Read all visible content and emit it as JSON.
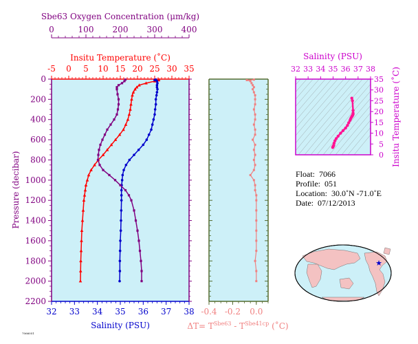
{
  "colors": {
    "oxygen": "#800080",
    "temperature": "#ff0000",
    "salinity": "#0000cc",
    "delta_t": "#f08080",
    "ts_curve": "#ff1493",
    "ts_axis": "#cc00cc",
    "plot_bg": "#cdf0f8",
    "pressure_axis": "#800080",
    "delta_axis": "#556b2f"
  },
  "info": {
    "float_label": "Float:",
    "float_value": "7066",
    "profile_label": "Profile:",
    "profile_value": "051",
    "location_label": "Location:",
    "location_value": "30.0˚N  -71.0˚E",
    "date_label": "Date:",
    "date_value": "07/12/2013"
  },
  "footer_code": "7066051",
  "chart_data": [
    {
      "type": "line",
      "title": "",
      "ylabel": "Pressure (decibar)",
      "ylim": [
        2200,
        0
      ],
      "yticks": [
        "0",
        "200",
        "400",
        "600",
        "800",
        "1000",
        "1200",
        "1400",
        "1600",
        "1800",
        "2000",
        "2200"
      ],
      "axes": {
        "oxygen": {
          "label": "Sbe63 Oxygen Concentration (μm/kg)",
          "range": [
            0,
            400
          ],
          "ticks": [
            "0",
            "100",
            "200",
            "300",
            "400"
          ]
        },
        "temperature": {
          "label": "Insitu Temperature (˚C)",
          "range": [
            -5,
            35
          ],
          "ticks": [
            "-5",
            "0",
            "5",
            "10",
            "15",
            "20",
            "25",
            "30",
            "35"
          ]
        },
        "salinity": {
          "label": "Salinity (PSU)",
          "range": [
            32,
            38
          ],
          "ticks": [
            "32",
            "33",
            "34",
            "35",
            "36",
            "37",
            "38"
          ]
        }
      },
      "series": [
        {
          "key": "temperature",
          "pressure": [
            5,
            10,
            20,
            40,
            60,
            80,
            100,
            130,
            160,
            200,
            250,
            300,
            350,
            400,
            450,
            500,
            550,
            600,
            650,
            700,
            750,
            800,
            850,
            900,
            950,
            1000,
            1050,
            1100,
            1150,
            1200,
            1300,
            1400,
            1500,
            1600,
            1700,
            1800,
            1900,
            2000
          ],
          "values": [
            26.2,
            26.1,
            25.0,
            22.5,
            20.5,
            19.8,
            19.3,
            18.8,
            18.5,
            18.3,
            18.1,
            17.9,
            17.6,
            17.2,
            16.6,
            15.9,
            14.8,
            13.6,
            12.4,
            11.2,
            10.0,
            8.6,
            7.5,
            6.5,
            5.8,
            5.4,
            5.0,
            4.8,
            4.6,
            4.4,
            4.2,
            4.0,
            3.8,
            3.7,
            3.6,
            3.5,
            3.45,
            3.4
          ]
        },
        {
          "key": "salinity",
          "pressure": [
            5,
            10,
            20,
            40,
            60,
            80,
            100,
            130,
            160,
            200,
            250,
            300,
            350,
            400,
            450,
            500,
            550,
            600,
            650,
            700,
            750,
            800,
            850,
            900,
            950,
            1000,
            1050,
            1100,
            1150,
            1200,
            1300,
            1400,
            1500,
            1600,
            1700,
            1800,
            1900,
            2000
          ],
          "values": [
            36.55,
            36.5,
            36.6,
            36.62,
            36.6,
            36.6,
            36.62,
            36.6,
            36.58,
            36.55,
            36.55,
            36.52,
            36.5,
            36.45,
            36.4,
            36.35,
            36.25,
            36.15,
            36.0,
            35.8,
            35.6,
            35.4,
            35.25,
            35.15,
            35.1,
            35.08,
            35.06,
            35.05,
            35.05,
            35.05,
            35.04,
            35.03,
            35.02,
            35.0,
            34.99,
            34.98,
            34.98,
            34.97
          ]
        },
        {
          "key": "oxygen",
          "pressure": [
            5,
            20,
            40,
            60,
            80,
            100,
            150,
            200,
            250,
            300,
            350,
            400,
            450,
            500,
            550,
            600,
            650,
            700,
            750,
            800,
            850,
            900,
            950,
            1000,
            1050,
            1100,
            1150,
            1200,
            1300,
            1400,
            1500,
            1600,
            1700,
            1800,
            1900,
            2000
          ],
          "values": [
            215,
            212,
            205,
            195,
            190,
            190,
            192,
            195,
            195,
            193,
            190,
            182,
            172,
            162,
            155,
            148,
            142,
            138,
            136,
            135,
            140,
            150,
            168,
            185,
            200,
            215,
            225,
            232,
            240,
            245,
            250,
            254,
            257,
            260,
            262,
            262
          ]
        }
      ]
    },
    {
      "type": "line",
      "xlabel": "ΔT= T^Sbe63 - T^Sbe41cp (˚C)",
      "xlabel_base": "ΔT= T",
      "xlabel_sup1": "Sbe63",
      "xlabel_mid": " - T",
      "xlabel_sup2": "Sbe41cp",
      "xlabel_end": " (˚C)",
      "xlim": [
        -0.4,
        0.1
      ],
      "xticks": [
        "-0.4",
        "-0.2",
        "0.0"
      ],
      "ylim": [
        2200,
        0
      ],
      "series": [
        {
          "key": "delta_t",
          "pressure": [
            5,
            10,
            20,
            40,
            60,
            80,
            100,
            130,
            160,
            200,
            250,
            300,
            350,
            400,
            450,
            500,
            550,
            600,
            650,
            700,
            750,
            800,
            850,
            900,
            950,
            1000,
            1050,
            1100,
            1150,
            1200,
            1300,
            1400,
            1500,
            1600,
            1700,
            1800,
            1900,
            2000
          ],
          "values": [
            -0.02,
            -0.08,
            -0.05,
            -0.04,
            -0.03,
            -0.02,
            -0.03,
            -0.02,
            -0.01,
            -0.01,
            -0.01,
            -0.02,
            -0.01,
            -0.01,
            -0.02,
            -0.01,
            -0.01,
            -0.03,
            -0.01,
            -0.02,
            -0.01,
            -0.02,
            -0.01,
            -0.02,
            -0.05,
            -0.02,
            -0.01,
            -0.01,
            0.0,
            0.0,
            0.0,
            0.0,
            0.0,
            0.0,
            0.0,
            -0.01,
            0.0,
            0.0
          ]
        }
      ]
    },
    {
      "type": "line",
      "xlabel": "Salinity (PSU)",
      "xlim": [
        32,
        38
      ],
      "xticks": [
        "32",
        "33",
        "34",
        "35",
        "36",
        "37",
        "38"
      ],
      "ylabel": "Insitu Temperature (˚C)",
      "ylim": [
        0,
        35
      ],
      "yticks": [
        "0",
        "5",
        "10",
        "15",
        "20",
        "25",
        "30",
        "35"
      ],
      "series": [
        {
          "key": "ts",
          "salinity": [
            34.97,
            34.98,
            35.0,
            35.02,
            35.04,
            35.05,
            35.08,
            35.15,
            35.25,
            35.4,
            35.6,
            35.8,
            36.0,
            36.15,
            36.25,
            36.35,
            36.4,
            36.45,
            36.5,
            36.52,
            36.55,
            36.58,
            36.6,
            36.6,
            36.6,
            36.55,
            36.5
          ],
          "temperature": [
            3.4,
            3.6,
            3.8,
            4.0,
            4.2,
            4.4,
            5.4,
            6.5,
            7.5,
            8.6,
            10.0,
            11.2,
            12.4,
            13.6,
            14.8,
            15.9,
            16.6,
            17.2,
            17.6,
            17.9,
            18.1,
            18.5,
            18.8,
            19.3,
            20.5,
            25.0,
            26.2
          ]
        }
      ]
    }
  ],
  "map": {
    "marker": "star",
    "marker_color": "#0000cc",
    "land_color": "#f4c2c2",
    "ocean_color": "#cdf0f8"
  }
}
